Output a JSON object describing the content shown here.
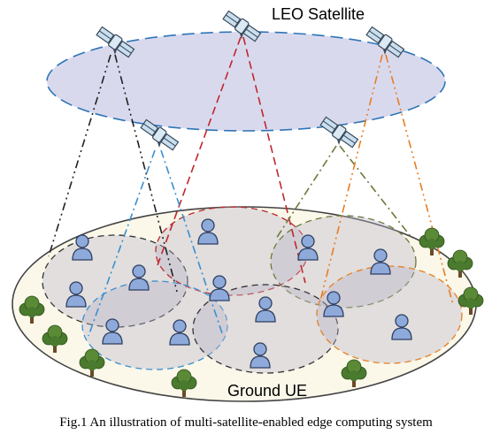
{
  "labels": {
    "satellite_layer": "LEO Satellite",
    "ground_layer": "Ground UE",
    "caption": "Fig.1 An illustration of multi-satellite-enabled edge computing system"
  },
  "colors": {
    "orbit_fill": "#d9d9ee",
    "orbit_stroke": "#2e75b6",
    "ground_fill": "#fbf8ea",
    "ground_stroke": "#444444",
    "coverage_fill": "#b9b2c8",
    "user_fill": "#8eaadb",
    "user_stroke": "#2f3f5f",
    "tree_green": "#4a7a2e",
    "tree_trunk": "#6b4a2a",
    "satellite_body": "#c9dff0",
    "satellite_stroke": "#3a4a5a"
  },
  "icons": {
    "satellite": "satellite-icon",
    "user": "user-icon",
    "tree": "tree-icon"
  },
  "links": [
    {
      "name": "black-link",
      "color": "#222222"
    },
    {
      "name": "red-link",
      "color": "#c0272d"
    },
    {
      "name": "blue-link",
      "color": "#3a8fd0"
    },
    {
      "name": "green-link",
      "color": "#6a7a3a"
    },
    {
      "name": "orange-link",
      "color": "#e67e22"
    }
  ]
}
